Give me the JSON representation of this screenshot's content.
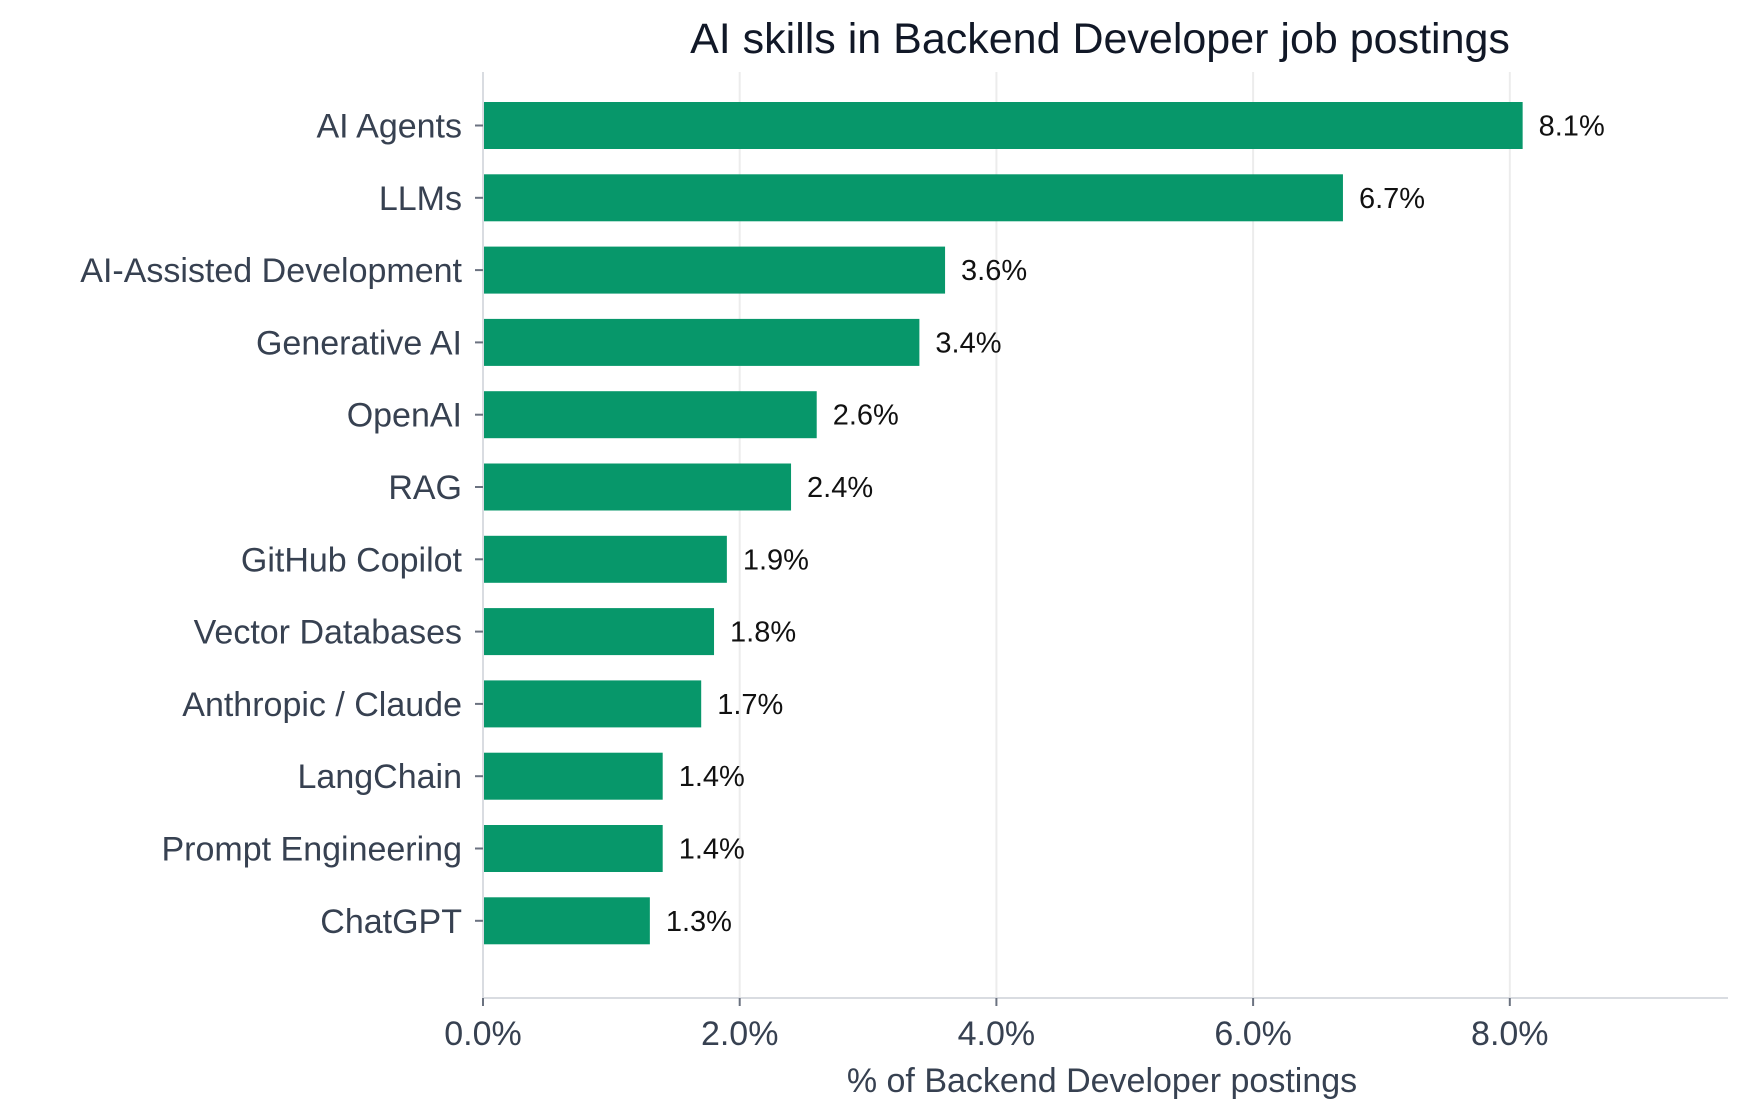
{
  "chart_data": {
    "type": "bar",
    "orientation": "horizontal",
    "title": "AI skills in Backend Developer job postings",
    "xlabel": "% of Backend Developer postings",
    "ylabel": "",
    "categories": [
      "AI Agents",
      "LLMs",
      "AI-Assisted Development",
      "Generative AI",
      "OpenAI",
      "RAG",
      "GitHub Copilot",
      "Vector Databases",
      "Anthropic / Claude",
      "LangChain",
      "Prompt Engineering",
      "ChatGPT"
    ],
    "values": [
      8.1,
      6.7,
      3.6,
      3.4,
      2.6,
      2.4,
      1.9,
      1.8,
      1.7,
      1.4,
      1.4,
      1.3
    ],
    "value_labels": [
      "8.1%",
      "6.7%",
      "3.6%",
      "3.4%",
      "2.6%",
      "2.4%",
      "1.9%",
      "1.8%",
      "1.7%",
      "1.4%",
      "1.4%",
      "1.3%"
    ],
    "xticks": [
      0,
      2,
      4,
      6,
      8
    ],
    "xtick_labels": [
      "0.0%",
      "2.0%",
      "4.0%",
      "6.0%",
      "8.0%"
    ],
    "xlim": [
      0,
      9.7
    ],
    "grid": "vertical",
    "bar_color": "#07976a"
  }
}
